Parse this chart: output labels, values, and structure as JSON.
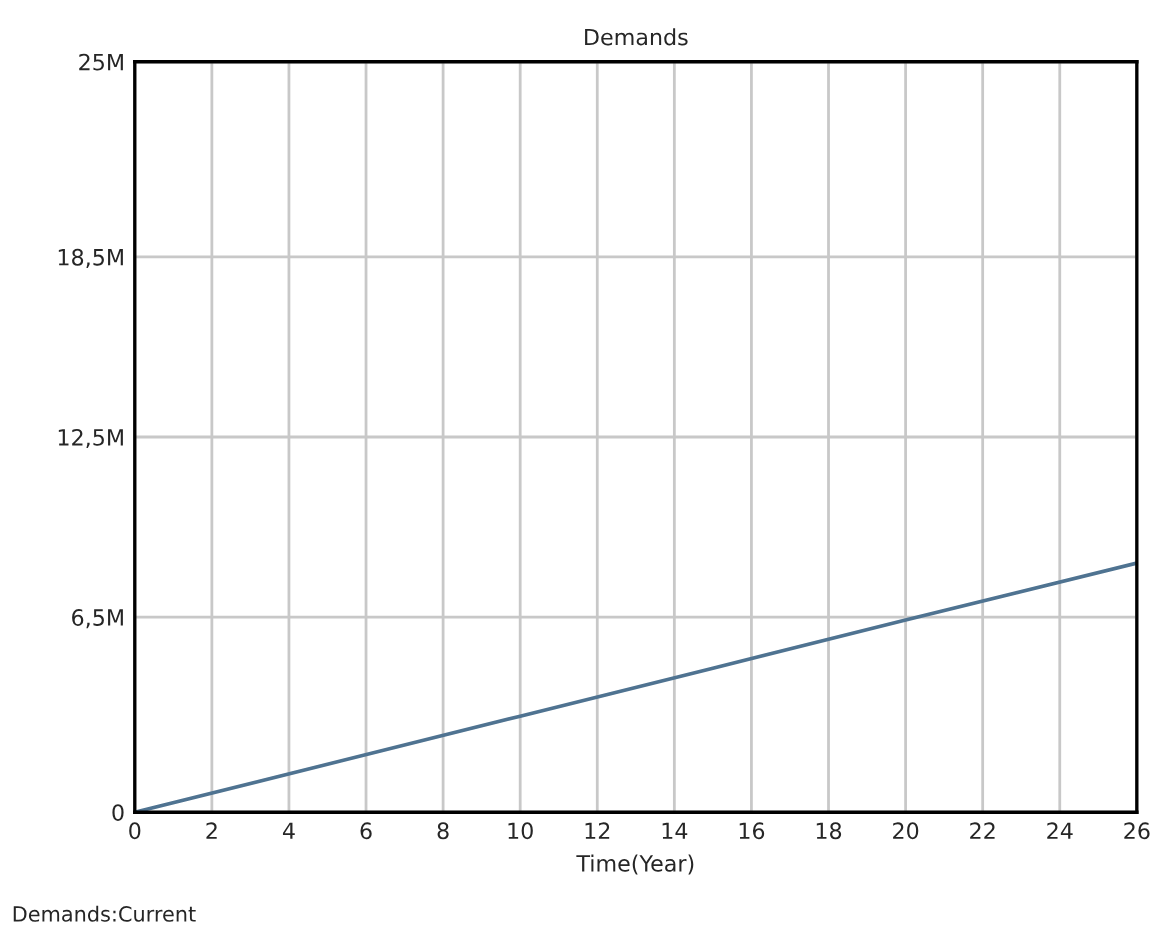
{
  "chart_data": {
    "type": "line",
    "title": "Demands",
    "xlabel": "Time(Year)",
    "x": [
      0,
      5,
      10,
      15,
      20,
      26
    ],
    "series": [
      {
        "color": "#4f7391",
        "values": [
          0,
          1600000,
          3200000,
          4800000,
          6400000,
          8300000
        ]
      }
    ],
    "xlim": [
      0,
      26
    ],
    "xticks": [
      0,
      2,
      4,
      6,
      8,
      10,
      12,
      14,
      16,
      18,
      20,
      22,
      24,
      26
    ],
    "ylim": [
      0,
      25000000
    ],
    "yticks": [
      {
        "value": 0,
        "label": "0"
      },
      {
        "value": 6500000,
        "label": "6,5M"
      },
      {
        "value": 12500000,
        "label": "12,5M"
      },
      {
        "value": 18500000,
        "label": "18,5M"
      },
      {
        "value": 25000000,
        "label": "25M"
      }
    ],
    "grid": true,
    "marker": "none",
    "line_style": "solid",
    "annotations": [
      "Demands:Current"
    ]
  }
}
